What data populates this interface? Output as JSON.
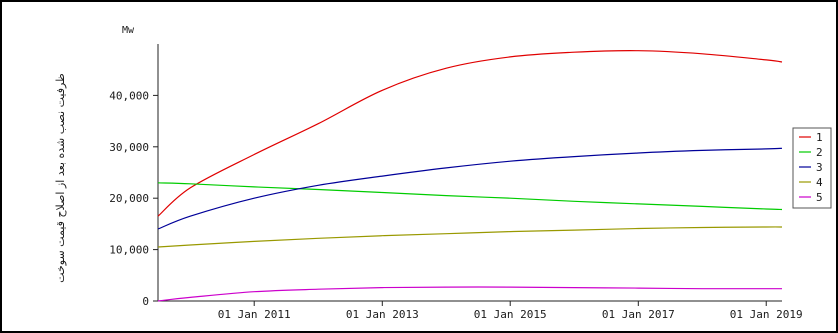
{
  "chart_data": {
    "type": "line",
    "title": "",
    "unit": "Mw",
    "xlabel": "",
    "ylabel": "ظرفیت نصب شده بعد از اصلاح قیمت سوخت",
    "x_date_range": [
      "2009-07-01",
      "2019-04-01"
    ],
    "ylim": [
      0,
      50000
    ],
    "yticks": [
      0,
      10000,
      20000,
      30000,
      40000
    ],
    "ytick_labels": [
      "0",
      "10,000",
      "20,000",
      "30,000",
      "40,000"
    ],
    "xticks": [
      "2011-01-01",
      "2013-01-01",
      "2015-01-01",
      "2017-01-01",
      "2019-01-01"
    ],
    "xtick_labels": [
      "01 Jan 2011",
      "01 Jan 2013",
      "01 Jan 2015",
      "01 Jan 2017",
      "01 Jan 2019"
    ],
    "grid": false,
    "legend_position": "right",
    "x": [
      "2009-07-01",
      "2010-01-01",
      "2011-01-01",
      "2012-01-01",
      "2013-01-01",
      "2014-01-01",
      "2015-01-01",
      "2016-01-01",
      "2017-01-01",
      "2018-01-01",
      "2019-01-01",
      "2019-04-01"
    ],
    "series": [
      {
        "name": "1",
        "color": "#e00000",
        "values": [
          16500,
          22000,
          28500,
          34500,
          41000,
          45300,
          47500,
          48400,
          48700,
          48100,
          46900,
          46500
        ]
      },
      {
        "name": "2",
        "color": "#00cc00",
        "values": [
          23000,
          22800,
          22200,
          21700,
          21100,
          20500,
          20000,
          19400,
          18900,
          18400,
          17900,
          17800
        ]
      },
      {
        "name": "3",
        "color": "#000099",
        "values": [
          14000,
          16500,
          20000,
          22500,
          24300,
          25900,
          27200,
          28100,
          28800,
          29300,
          29600,
          29700
        ]
      },
      {
        "name": "4",
        "color": "#999900",
        "values": [
          10500,
          10900,
          11600,
          12200,
          12700,
          13100,
          13500,
          13800,
          14100,
          14300,
          14400,
          14400
        ]
      },
      {
        "name": "5",
        "color": "#cc00cc",
        "values": [
          0,
          700,
          1800,
          2300,
          2600,
          2700,
          2700,
          2600,
          2500,
          2400,
          2400,
          2400
        ]
      }
    ]
  }
}
